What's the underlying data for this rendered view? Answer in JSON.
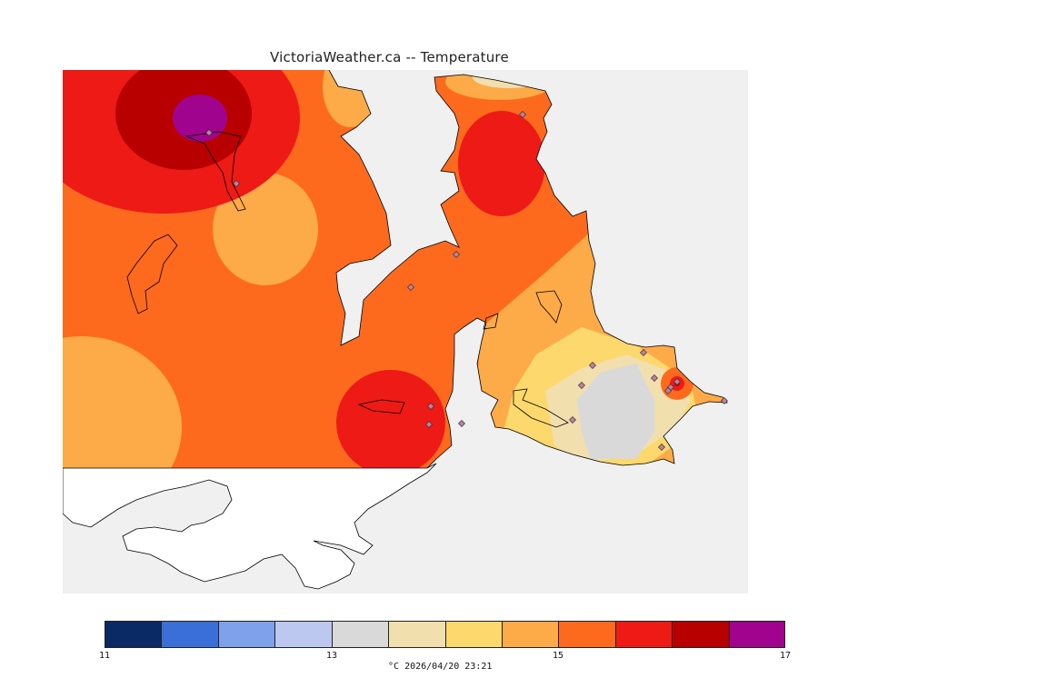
{
  "title": "VictoriaWeather.ca -- Temperature",
  "footer": {
    "unit": "°C",
    "timestamp": "2026/04/20 23:21"
  },
  "colorbar": {
    "min": 11,
    "max": 17,
    "tick_labels": [
      "11",
      "13",
      "15",
      "17"
    ],
    "colors": [
      "#0a2a66",
      "#3a6fd8",
      "#7fa0ea",
      "#bcc8f0",
      "#d9d9d9",
      "#f2dfae",
      "#fdd86c",
      "#fdaa48",
      "#fd6a1e",
      "#ee1a16",
      "#b80000",
      "#a0048e"
    ]
  },
  "colors": {
    "no_data": "#f0f0f0",
    "land_outline": "#000000",
    "station_marker": "#c080a0"
  },
  "stations": [
    {
      "id": "s1"
    },
    {
      "id": "s2"
    },
    {
      "id": "s3"
    },
    {
      "id": "s4"
    },
    {
      "id": "s5"
    },
    {
      "id": "s6"
    },
    {
      "id": "s7"
    },
    {
      "id": "s8"
    },
    {
      "id": "s9"
    },
    {
      "id": "s10"
    },
    {
      "id": "s11"
    },
    {
      "id": "s12"
    },
    {
      "id": "s13"
    },
    {
      "id": "s14"
    },
    {
      "id": "s15"
    },
    {
      "id": "s16"
    },
    {
      "id": "s17"
    },
    {
      "id": "s18"
    }
  ]
}
